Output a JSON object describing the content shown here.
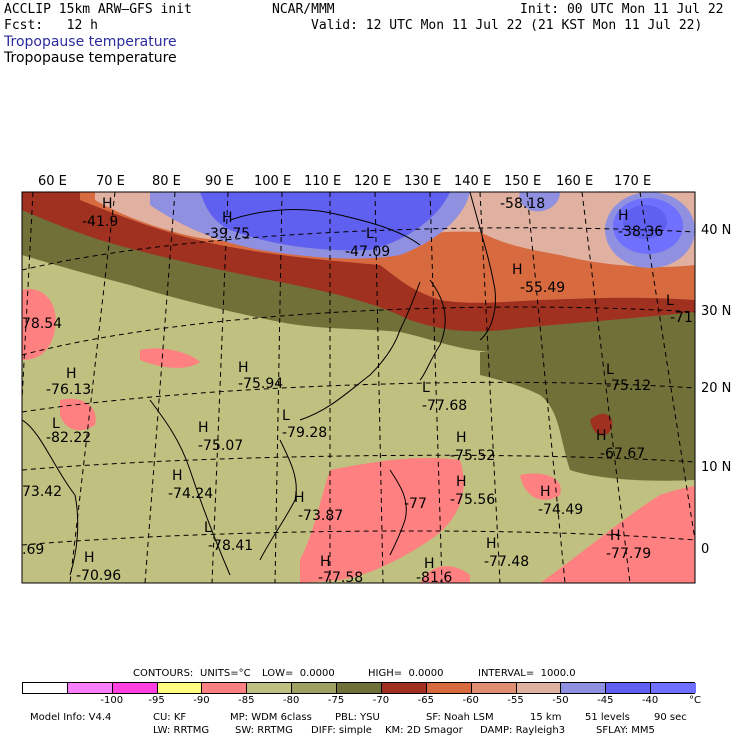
{
  "header": {
    "model": "ACCLIP 15km ARW–GFS init",
    "fcst": "Fcst:   12 h",
    "org": "NCAR/MMM",
    "init": "Init: 00 UTC Mon 11 Jul 22",
    "valid": "Valid: 12 UTC Mon 11 Jul 22 (21 KST Mon 11 Jul 22)",
    "field_title_1": "Tropopause temperature",
    "field_title_2": "Tropopause temperature"
  },
  "map": {
    "lon_labels": [
      "60 E",
      "70 E",
      "80 E",
      "90 E",
      "100 E",
      "110 E",
      "120 E",
      "130 E",
      "140 E",
      "150 E",
      "160 E",
      "170 E"
    ],
    "lat_labels": [
      "40 N",
      "30 N",
      "20 N",
      "10 N",
      "0"
    ],
    "extrema": [
      {
        "type": "H",
        "value": "-41.9"
      },
      {
        "type": "H",
        "value": "-39.75"
      },
      {
        "type": "L",
        "value": "-47.09"
      },
      {
        "type": "",
        "value": "-58.18"
      },
      {
        "type": "H",
        "value": "-38.36"
      },
      {
        "type": "H",
        "value": "-55.49"
      },
      {
        "type": "L",
        "value": "-71"
      },
      {
        "type": "",
        "value": "78.54"
      },
      {
        "type": "H",
        "value": "-76.13"
      },
      {
        "type": "H",
        "value": "-75.94"
      },
      {
        "type": "L",
        "value": "-77.68"
      },
      {
        "type": "L",
        "value": "-75.12"
      },
      {
        "type": "L",
        "value": "-82.22"
      },
      {
        "type": "H",
        "value": "-75.07"
      },
      {
        "type": "L",
        "value": "-79.28"
      },
      {
        "type": "H",
        "value": "-75.52"
      },
      {
        "type": "H",
        "value": "-67.67"
      },
      {
        "type": "H",
        "value": "-74.24"
      },
      {
        "type": "",
        "value": "73.42"
      },
      {
        "type": "H",
        "value": "-73.87"
      },
      {
        "type": "H",
        "value": "-75.56"
      },
      {
        "type": "H",
        "value": "-74.49"
      },
      {
        "type": "L",
        "value": "-78.41"
      },
      {
        "type": "",
        "value": "-77"
      },
      {
        "type": "H",
        "value": "-77.48"
      },
      {
        "type": "H",
        "value": "-77.79"
      },
      {
        "type": "",
        "value": ".69"
      },
      {
        "type": "H",
        "value": "-70.96"
      },
      {
        "type": "H",
        "value": "-77.58"
      },
      {
        "type": "H",
        "value": "-81.6"
      }
    ]
  },
  "contours": {
    "label": "CONTOURS:",
    "units": "UNITS=°C",
    "low": "LOW=  0.0000",
    "high": "HIGH=  0.0000",
    "interval": "INTERVAL=  1000.0"
  },
  "colorbar": {
    "colors": [
      "#ffffff",
      "#ff80ff",
      "#ff40e0",
      "#ffff80",
      "#ff8080",
      "#c0c080",
      "#a0a060",
      "#707038",
      "#a03020",
      "#d86a40",
      "#e09070",
      "#e0b0a0",
      "#9090e0",
      "#6060f0",
      "#7070ff"
    ],
    "ticks": [
      "-100",
      "-95",
      "-90",
      "-85",
      "-80",
      "-75",
      "-70",
      "-65",
      "-60",
      "-55",
      "-50",
      "-45",
      "-40"
    ],
    "unit": "°C"
  },
  "footer": {
    "line1": [
      "Model Info: V4.4",
      "CU: KF",
      "MP: WDM 6class",
      "PBL: YSU",
      "SF: Noah LSM",
      "15 km",
      "51 levels",
      "90 sec"
    ],
    "line2": [
      "LW: RRTMG",
      "SW: RRTMG",
      "DIFF: simple",
      "KM: 2D Smagor",
      "DAMP: Rayleigh3",
      "SFLAY: MM5"
    ]
  }
}
